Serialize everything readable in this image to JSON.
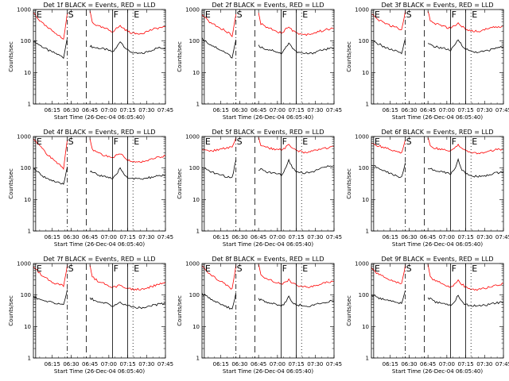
{
  "figure": {
    "xtick_labels": [
      "06:15",
      "06:30",
      "06:45",
      "07:00",
      "07:15",
      "07:30",
      "07:45"
    ],
    "ytick_labels": [
      "1",
      "10",
      "100",
      "1000"
    ]
  },
  "chart_data": [
    {
      "type": "line",
      "detector": "1f",
      "title": "Det 1f BLACK = Events, RED = LLD",
      "xlabel": "Start Time (26-Dec-04 06:05:40)",
      "ylabel": "Counts/sec",
      "xlim": [
        6.0,
        7.75
      ],
      "ylim": [
        1,
        1000
      ],
      "yscale": "log",
      "x": [
        6.0,
        6.1,
        6.2,
        6.3,
        6.4,
        6.45,
        6.75,
        6.78,
        6.85,
        6.95,
        7.05,
        7.1,
        7.15,
        7.2,
        7.25,
        7.35,
        7.45,
        7.55,
        7.65,
        7.75
      ],
      "series": [
        {
          "name": "Events",
          "color": "#000000",
          "values": [
            100,
            70,
            50,
            40,
            30,
            130,
            70,
            65,
            60,
            55,
            45,
            60,
            100,
            70,
            50,
            40,
            40,
            50,
            60,
            60
          ]
        },
        {
          "name": "LLD",
          "color": "#ff0000",
          "values": [
            800,
            400,
            250,
            180,
            110,
            800,
            900,
            400,
            300,
            250,
            200,
            250,
            300,
            250,
            200,
            170,
            180,
            220,
            260,
            280
          ]
        }
      ],
      "markers": [
        {
          "label": "E",
          "x": 6.03,
          "style": "solid"
        },
        {
          "label": "S",
          "x": 6.45,
          "style": "dashdot"
        },
        {
          "label": "",
          "x": 6.7,
          "style": "longdash"
        },
        {
          "label": "F",
          "x": 7.05,
          "style": "solid"
        },
        {
          "label": "",
          "x": 7.25,
          "style": "solid"
        },
        {
          "label": "E",
          "x": 7.32,
          "style": "dotted"
        }
      ]
    },
    {
      "type": "line",
      "detector": "2f",
      "title": "Det 2f BLACK = Events, RED = LLD",
      "xlabel": "Start Time (26-Dec-04 06:05:40)",
      "ylabel": "Counts/sec",
      "xlim": [
        6.0,
        7.75
      ],
      "ylim": [
        1,
        1000
      ],
      "yscale": "log",
      "x": [
        6.0,
        6.1,
        6.2,
        6.3,
        6.4,
        6.45,
        6.75,
        6.78,
        6.85,
        6.95,
        7.05,
        7.1,
        7.15,
        7.2,
        7.25,
        7.35,
        7.45,
        7.55,
        7.65,
        7.75
      ],
      "series": [
        {
          "name": "Events",
          "color": "#000000",
          "values": [
            120,
            80,
            60,
            45,
            30,
            110,
            70,
            65,
            55,
            50,
            40,
            55,
            90,
            60,
            45,
            40,
            40,
            50,
            55,
            60
          ]
        },
        {
          "name": "LLD",
          "color": "#ff0000",
          "values": [
            700,
            400,
            300,
            220,
            150,
            700,
            800,
            350,
            280,
            230,
            180,
            220,
            300,
            220,
            180,
            160,
            170,
            200,
            230,
            250
          ]
        }
      ],
      "markers": [
        {
          "label": "E",
          "x": 6.03,
          "style": "solid"
        },
        {
          "label": "S",
          "x": 6.45,
          "style": "dashdot"
        },
        {
          "label": "",
          "x": 6.7,
          "style": "longdash"
        },
        {
          "label": "F",
          "x": 7.05,
          "style": "solid"
        },
        {
          "label": "",
          "x": 7.25,
          "style": "solid"
        },
        {
          "label": "E",
          "x": 7.32,
          "style": "dotted"
        }
      ]
    },
    {
      "type": "line",
      "detector": "3f",
      "title": "Det 3f BLACK = Events, RED = LLD",
      "xlabel": "Start Time (26-Dec-04 06:05:40)",
      "ylabel": "Counts/sec",
      "xlim": [
        6.0,
        7.75
      ],
      "ylim": [
        1,
        1000
      ],
      "yscale": "log",
      "x": [
        6.0,
        6.1,
        6.2,
        6.3,
        6.4,
        6.45,
        6.75,
        6.78,
        6.85,
        6.95,
        7.05,
        7.1,
        7.15,
        7.2,
        7.25,
        7.35,
        7.45,
        7.55,
        7.65,
        7.75
      ],
      "series": [
        {
          "name": "Events",
          "color": "#000000",
          "values": [
            100,
            80,
            60,
            50,
            40,
            120,
            80,
            75,
            65,
            60,
            50,
            70,
            110,
            75,
            55,
            45,
            45,
            50,
            60,
            65
          ]
        },
        {
          "name": "LLD",
          "color": "#ff0000",
          "values": [
            700,
            450,
            350,
            280,
            230,
            900,
            900,
            420,
            350,
            300,
            250,
            300,
            380,
            300,
            230,
            200,
            210,
            250,
            280,
            300
          ]
        }
      ],
      "markers": [
        {
          "label": "E",
          "x": 6.03,
          "style": "solid"
        },
        {
          "label": "S",
          "x": 6.45,
          "style": "dashdot"
        },
        {
          "label": "",
          "x": 6.7,
          "style": "longdash"
        },
        {
          "label": "F",
          "x": 7.05,
          "style": "solid"
        },
        {
          "label": "",
          "x": 7.25,
          "style": "solid"
        },
        {
          "label": "E",
          "x": 7.32,
          "style": "dotted"
        }
      ]
    },
    {
      "type": "line",
      "detector": "4f",
      "title": "Det 4f BLACK = Events, RED = LLD",
      "xlabel": "Start Time (26-Dec-04 06:05:40)",
      "ylabel": "Counts/sec",
      "xlim": [
        6.0,
        7.75
      ],
      "ylim": [
        1,
        1000
      ],
      "yscale": "log",
      "x": [
        6.0,
        6.1,
        6.2,
        6.3,
        6.4,
        6.45,
        6.75,
        6.78,
        6.85,
        6.95,
        7.05,
        7.1,
        7.15,
        7.2,
        7.25,
        7.35,
        7.45,
        7.55,
        7.65,
        7.75
      ],
      "series": [
        {
          "name": "Events",
          "color": "#000000",
          "values": [
            100,
            60,
            45,
            35,
            30,
            110,
            80,
            75,
            60,
            55,
            45,
            60,
            100,
            65,
            50,
            45,
            45,
            50,
            55,
            60
          ]
        },
        {
          "name": "LLD",
          "color": "#ff0000",
          "values": [
            900,
            450,
            250,
            150,
            100,
            800,
            900,
            400,
            300,
            250,
            200,
            250,
            300,
            230,
            180,
            150,
            160,
            190,
            220,
            240
          ]
        }
      ],
      "markers": [
        {
          "label": "E",
          "x": 6.03,
          "style": "solid"
        },
        {
          "label": "S",
          "x": 6.45,
          "style": "dashdot"
        },
        {
          "label": "",
          "x": 6.7,
          "style": "longdash"
        },
        {
          "label": "F",
          "x": 7.05,
          "style": "solid"
        },
        {
          "label": "",
          "x": 7.25,
          "style": "solid"
        },
        {
          "label": "E",
          "x": 7.32,
          "style": "dotted"
        }
      ]
    },
    {
      "type": "line",
      "detector": "5f",
      "title": "Det 5f BLACK = Events, RED = LLD",
      "xlabel": "Start Time (26-Dec-04 06:05:40)",
      "ylabel": "Counts/sec",
      "xlim": [
        6.0,
        7.75
      ],
      "ylim": [
        1,
        1000
      ],
      "yscale": "log",
      "x": [
        6.0,
        6.1,
        6.2,
        6.3,
        6.4,
        6.45,
        6.75,
        6.78,
        6.85,
        6.95,
        7.05,
        7.1,
        7.15,
        7.2,
        7.25,
        7.35,
        7.45,
        7.55,
        7.65,
        7.75
      ],
      "series": [
        {
          "name": "Events",
          "color": "#000000",
          "values": [
            100,
            80,
            65,
            55,
            50,
            180,
            80,
            90,
            75,
            70,
            60,
            90,
            180,
            100,
            80,
            70,
            75,
            90,
            110,
            120
          ]
        },
        {
          "name": "LLD",
          "color": "#ff0000",
          "values": [
            400,
            330,
            380,
            420,
            450,
            900,
            1000,
            500,
            450,
            400,
            380,
            420,
            550,
            420,
            350,
            320,
            330,
            380,
            430,
            480
          ]
        }
      ],
      "markers": [
        {
          "label": "E",
          "x": 6.03,
          "style": "solid"
        },
        {
          "label": "S",
          "x": 6.45,
          "style": "dashdot"
        },
        {
          "label": "",
          "x": 6.7,
          "style": "longdash"
        },
        {
          "label": "F",
          "x": 7.05,
          "style": "solid"
        },
        {
          "label": "",
          "x": 7.25,
          "style": "solid"
        },
        {
          "label": "E",
          "x": 7.32,
          "style": "dotted"
        }
      ]
    },
    {
      "type": "line",
      "detector": "6f",
      "title": "Det 6f BLACK = Events, RED = LLD",
      "xlabel": "Start Time (26-Dec-04 06:05:40)",
      "ylabel": "Counts/sec",
      "xlim": [
        6.0,
        7.75
      ],
      "ylim": [
        1,
        1000
      ],
      "yscale": "log",
      "x": [
        6.0,
        6.1,
        6.2,
        6.3,
        6.4,
        6.45,
        6.75,
        6.78,
        6.85,
        6.95,
        7.05,
        7.1,
        7.15,
        7.2,
        7.25,
        7.35,
        7.45,
        7.55,
        7.65,
        7.75
      ],
      "series": [
        {
          "name": "Events",
          "color": "#000000",
          "values": [
            130,
            95,
            75,
            60,
            50,
            150,
            100,
            95,
            80,
            75,
            65,
            90,
            180,
            90,
            65,
            55,
            55,
            60,
            70,
            75
          ]
        },
        {
          "name": "LLD",
          "color": "#ff0000",
          "values": [
            600,
            500,
            420,
            350,
            300,
            800,
            900,
            500,
            420,
            380,
            350,
            420,
            550,
            420,
            350,
            300,
            300,
            330,
            380,
            400
          ]
        }
      ],
      "markers": [
        {
          "label": "E",
          "x": 6.03,
          "style": "solid"
        },
        {
          "label": "S",
          "x": 6.45,
          "style": "dashdot"
        },
        {
          "label": "",
          "x": 6.7,
          "style": "longdash"
        },
        {
          "label": "F",
          "x": 7.05,
          "style": "solid"
        },
        {
          "label": "",
          "x": 7.25,
          "style": "solid"
        },
        {
          "label": "E",
          "x": 7.32,
          "style": "dotted"
        }
      ]
    },
    {
      "type": "line",
      "detector": "7f",
      "title": "Det 7f BLACK = Events, RED = LLD",
      "xlabel": "Start Time (26-Dec-04 06:05:40)",
      "ylabel": "Counts/sec",
      "xlim": [
        6.0,
        7.75
      ],
      "ylim": [
        1,
        1000
      ],
      "yscale": "log",
      "x": [
        6.0,
        6.1,
        6.2,
        6.3,
        6.4,
        6.45,
        6.75,
        6.78,
        6.85,
        6.95,
        7.05,
        7.1,
        7.15,
        7.2,
        7.25,
        7.35,
        7.45,
        7.55,
        7.65,
        7.75
      ],
      "series": [
        {
          "name": "Events",
          "color": "#000000",
          "values": [
            90,
            70,
            60,
            55,
            50,
            150,
            80,
            75,
            60,
            55,
            45,
            50,
            60,
            50,
            45,
            40,
            40,
            45,
            50,
            55
          ]
        },
        {
          "name": "LLD",
          "color": "#ff0000",
          "values": [
            800,
            450,
            300,
            230,
            200,
            900,
            900,
            380,
            280,
            220,
            180,
            180,
            220,
            180,
            160,
            150,
            150,
            180,
            220,
            260
          ]
        }
      ],
      "markers": [
        {
          "label": "E",
          "x": 6.03,
          "style": "solid"
        },
        {
          "label": "S",
          "x": 6.45,
          "style": "dashdot"
        },
        {
          "label": "",
          "x": 6.7,
          "style": "longdash"
        },
        {
          "label": "F",
          "x": 7.05,
          "style": "solid"
        },
        {
          "label": "",
          "x": 7.25,
          "style": "solid"
        },
        {
          "label": "E",
          "x": 7.32,
          "style": "dotted"
        }
      ]
    },
    {
      "type": "line",
      "detector": "8f",
      "title": "Det 8f BLACK = Events, RED = LLD",
      "xlabel": "Start Time (26-Dec-04 06:05:40)",
      "ylabel": "Counts/sec",
      "xlim": [
        6.0,
        7.75
      ],
      "ylim": [
        1,
        1000
      ],
      "yscale": "log",
      "x": [
        6.0,
        6.1,
        6.2,
        6.3,
        6.4,
        6.45,
        6.75,
        6.78,
        6.85,
        6.95,
        7.05,
        7.1,
        7.15,
        7.2,
        7.25,
        7.35,
        7.45,
        7.55,
        7.65,
        7.75
      ],
      "series": [
        {
          "name": "Events",
          "color": "#000000",
          "values": [
            110,
            80,
            60,
            45,
            35,
            120,
            75,
            70,
            60,
            55,
            45,
            55,
            90,
            60,
            50,
            45,
            45,
            55,
            60,
            65
          ]
        },
        {
          "name": "LLD",
          "color": "#ff0000",
          "values": [
            800,
            450,
            320,
            230,
            150,
            900,
            900,
            420,
            320,
            270,
            220,
            250,
            300,
            240,
            200,
            180,
            180,
            220,
            250,
            270
          ]
        }
      ],
      "markers": [
        {
          "label": "E",
          "x": 6.03,
          "style": "solid"
        },
        {
          "label": "S",
          "x": 6.45,
          "style": "dashdot"
        },
        {
          "label": "",
          "x": 6.7,
          "style": "longdash"
        },
        {
          "label": "F",
          "x": 7.05,
          "style": "solid"
        },
        {
          "label": "",
          "x": 7.25,
          "style": "solid"
        },
        {
          "label": "E",
          "x": 7.32,
          "style": "dotted"
        }
      ]
    },
    {
      "type": "line",
      "detector": "9f",
      "title": "Det 9f BLACK = Events, RED = LLD",
      "xlabel": "Start Time (26-Dec-04 06:05:40)",
      "ylabel": "Counts/sec",
      "xlim": [
        6.0,
        7.75
      ],
      "ylim": [
        1,
        1000
      ],
      "yscale": "log",
      "x": [
        6.0,
        6.1,
        6.2,
        6.3,
        6.4,
        6.45,
        6.75,
        6.78,
        6.85,
        6.95,
        7.05,
        7.1,
        7.15,
        7.2,
        7.25,
        7.35,
        7.45,
        7.55,
        7.65,
        7.75
      ],
      "series": [
        {
          "name": "Events",
          "color": "#000000",
          "values": [
            100,
            80,
            70,
            60,
            55,
            140,
            80,
            75,
            60,
            55,
            45,
            60,
            100,
            60,
            50,
            45,
            45,
            50,
            55,
            60
          ]
        },
        {
          "name": "LLD",
          "color": "#ff0000",
          "values": [
            700,
            450,
            350,
            280,
            230,
            900,
            900,
            380,
            280,
            230,
            180,
            220,
            300,
            220,
            180,
            150,
            150,
            180,
            210,
            230
          ]
        }
      ],
      "markers": [
        {
          "label": "E",
          "x": 6.03,
          "style": "solid"
        },
        {
          "label": "S",
          "x": 6.45,
          "style": "dashdot"
        },
        {
          "label": "",
          "x": 6.7,
          "style": "longdash"
        },
        {
          "label": "F",
          "x": 7.05,
          "style": "solid"
        },
        {
          "label": "",
          "x": 7.25,
          "style": "solid"
        },
        {
          "label": "E",
          "x": 7.32,
          "style": "dotted"
        }
      ]
    }
  ]
}
